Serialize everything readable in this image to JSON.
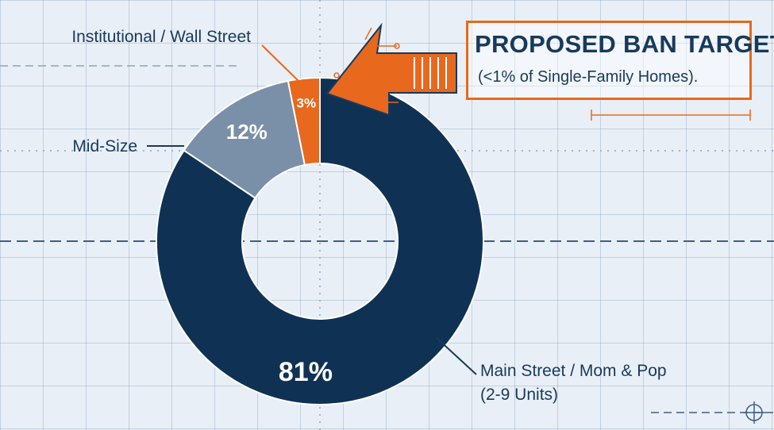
{
  "chart_data": {
    "type": "pie",
    "categories": [
      "Main Street / Mom & Pop\n(2-9 Units)",
      "Mid-Size",
      "Institutional / Wall Street"
    ],
    "values": [
      81,
      12,
      3
    ],
    "value_labels": [
      "81%",
      "12%",
      "3%"
    ],
    "label_lines": [
      [
        "Main Street / Mom & Pop",
        "(2-9 Units)"
      ],
      [
        "Mid-Size"
      ],
      [
        "Institutional / Wall Street"
      ]
    ],
    "colors": [
      "#0f3254",
      "#7a8fa8",
      "#e8681d"
    ],
    "donut": true,
    "grid": true
  },
  "callout": {
    "title": "PROPOSED BAN TARGET",
    "subtitle": "(<1% of Single-Family Homes)."
  },
  "colors": {
    "background": "#e9eff6",
    "accent": "#e8681d",
    "text": "#173a5c"
  }
}
